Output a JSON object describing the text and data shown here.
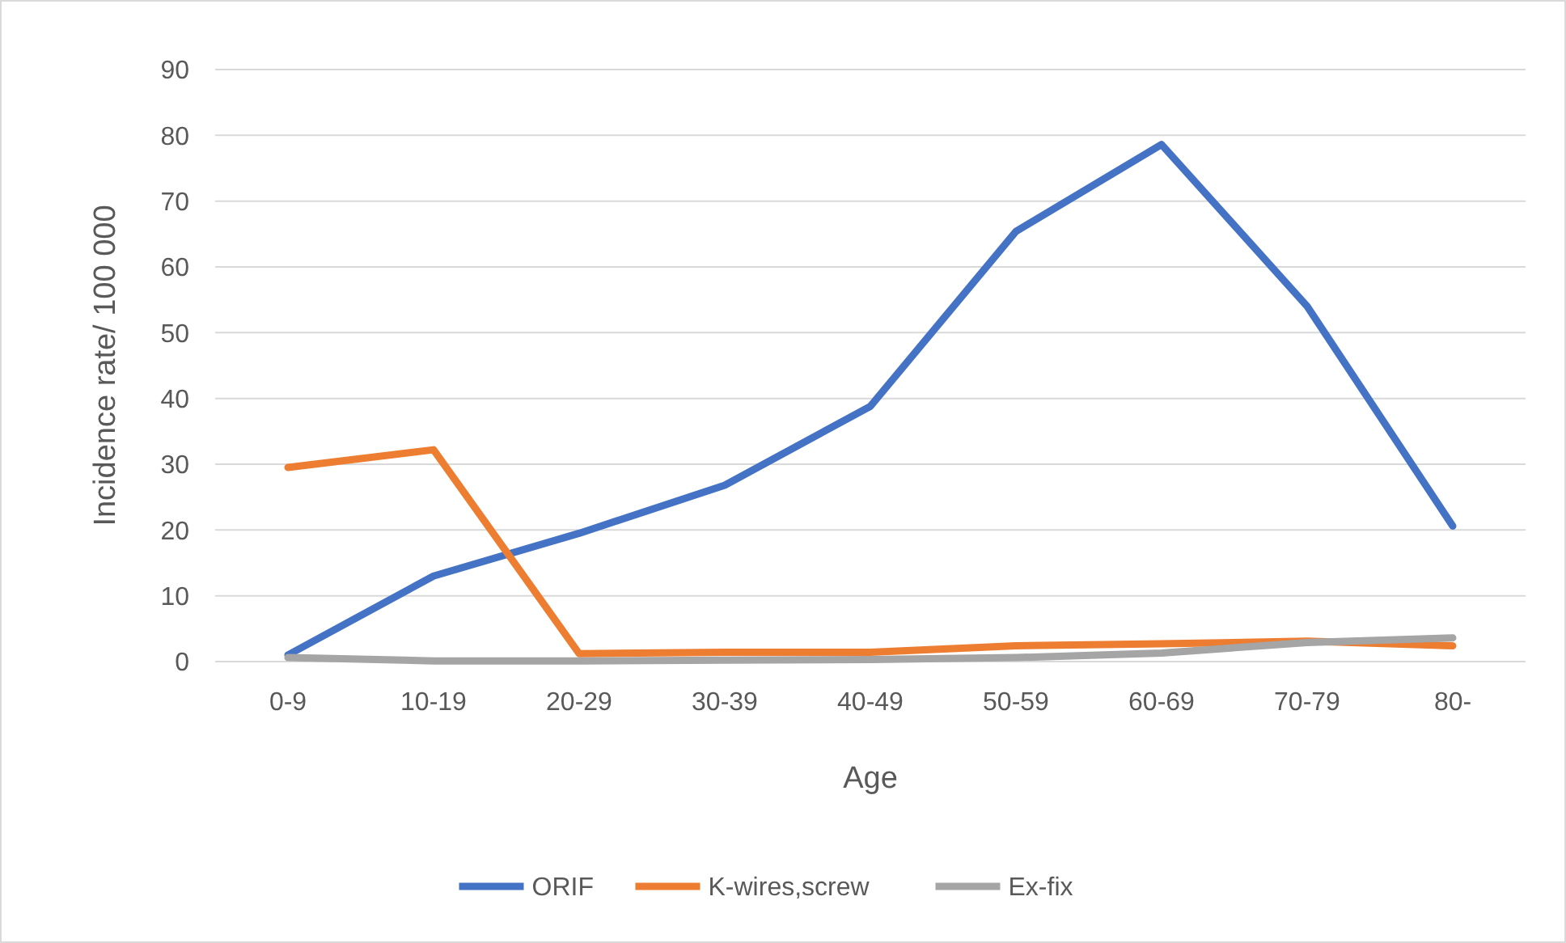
{
  "chart_data": {
    "type": "line",
    "xlabel": "Age",
    "ylabel": "Incidence rate/ 100 000",
    "categories": [
      "0-9",
      "10-19",
      "20-29",
      "30-39",
      "40-49",
      "50-59",
      "60-69",
      "70-79",
      "80-"
    ],
    "series": [
      {
        "name": "ORIF",
        "color": "#4472c4",
        "values": [
          1,
          13,
          19.5,
          26.8,
          38.8,
          65.4,
          78.6,
          54,
          20.6
        ]
      },
      {
        "name": "K-wires,screw",
        "color": "#ed7d31",
        "values": [
          29.5,
          32.2,
          1.2,
          1.4,
          1.4,
          2.4,
          2.7,
          3.1,
          2.4
        ]
      },
      {
        "name": "Ex-fix",
        "color": "#a5a5a5",
        "values": [
          0.6,
          0.1,
          0.1,
          0.2,
          0.3,
          0.6,
          1.3,
          2.9,
          3.6
        ]
      }
    ],
    "ylim": [
      0,
      90
    ],
    "yticks": [
      0,
      10,
      20,
      30,
      40,
      50,
      60,
      70,
      80,
      90
    ],
    "grid": "y",
    "legend": "bottom",
    "marker": "none",
    "line_style": "solid"
  }
}
